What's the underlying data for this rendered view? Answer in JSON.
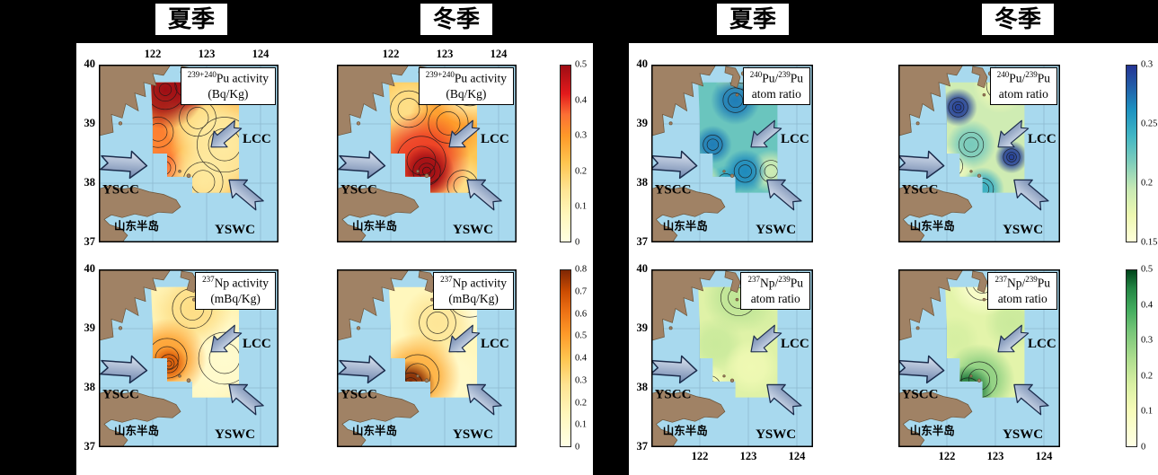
{
  "titles": {
    "col1": "夏季",
    "col2": "冬季",
    "col3": "夏季",
    "col4": "冬季"
  },
  "axes": {
    "x_ticks": [
      "122",
      "123",
      "124"
    ],
    "y_ticks": [
      "40",
      "39",
      "38",
      "37"
    ]
  },
  "map_labels": {
    "yscc": "YSCC",
    "lcc": "LCC",
    "yswc": "YSWC",
    "peninsula": "山东半岛"
  },
  "colors": {
    "background": "#000000",
    "panel": "#ffffff",
    "sea": "#a8d9ee",
    "land": "#a08265",
    "land_edge": "#6b5134",
    "grid": "#7fa8bf",
    "arrow_light": "#dde6f2",
    "arrow_dark": "#6f86ad",
    "arrow_edge": "#1c2c4c"
  },
  "colormaps": {
    "pu_activity": [
      [
        0,
        "#ffffe0"
      ],
      [
        0.15,
        "#fff7bc"
      ],
      [
        0.3,
        "#fee391"
      ],
      [
        0.45,
        "#fec44f"
      ],
      [
        0.6,
        "#fe9929"
      ],
      [
        0.72,
        "#fd7034"
      ],
      [
        0.84,
        "#e31a1c"
      ],
      [
        1,
        "#9e0d14"
      ]
    ],
    "np_activity": [
      [
        0,
        "#ffffe5"
      ],
      [
        0.18,
        "#fff7bc"
      ],
      [
        0.35,
        "#fee391"
      ],
      [
        0.5,
        "#fec44f"
      ],
      [
        0.64,
        "#fe9929"
      ],
      [
        0.77,
        "#ec7014"
      ],
      [
        0.88,
        "#cc4c02"
      ],
      [
        1,
        "#7f2704"
      ]
    ],
    "pu_ratio": [
      [
        0,
        "#ffffd9"
      ],
      [
        0.15,
        "#edf8b1"
      ],
      [
        0.3,
        "#c7e9b4"
      ],
      [
        0.45,
        "#7fcdbb"
      ],
      [
        0.6,
        "#41b6c4"
      ],
      [
        0.75,
        "#1d91c0"
      ],
      [
        0.88,
        "#225ea8"
      ],
      [
        1,
        "#253494"
      ]
    ],
    "np_ratio": [
      [
        0,
        "#ffffe5"
      ],
      [
        0.2,
        "#f7fcb9"
      ],
      [
        0.35,
        "#d9f0a3"
      ],
      [
        0.5,
        "#addd8e"
      ],
      [
        0.65,
        "#78c679"
      ],
      [
        0.78,
        "#41ab5d"
      ],
      [
        0.9,
        "#238443"
      ],
      [
        1,
        "#00441b"
      ]
    ]
  },
  "chart_data": {
    "type": "heatmap",
    "description": "Eight contour maps of the Yellow Sea (lon 122-124 E, lat 37-40 N) showing Pu/Np activity and atom ratios in surface sediment for summer and winter seasons, with ocean currents YSCC, LCC, YSWC and the Shandong Peninsula.",
    "colorbars": [
      {
        "colormap": "pu_activity",
        "range": [
          0,
          0.5
        ],
        "ticks": [
          "0.5",
          "0.4",
          "0.3",
          "0.2",
          "0.1",
          "0"
        ]
      },
      {
        "colormap": "np_activity",
        "range": [
          0,
          0.8
        ],
        "ticks": [
          "0.8",
          "0.7",
          "0.6",
          "0.5",
          "0.4",
          "0.3",
          "0.2",
          "0.1",
          "0"
        ]
      },
      {
        "colormap": "pu_ratio",
        "range": [
          0.15,
          0.3
        ],
        "ticks": [
          "0.3",
          "0.25",
          "0.2",
          "0.15"
        ]
      },
      {
        "colormap": "np_ratio",
        "range": [
          0,
          0.5
        ],
        "ticks": [
          "0.5",
          "0.4",
          "0.3",
          "0.2",
          "0.1",
          "0"
        ]
      }
    ],
    "panels": [
      {
        "id": "pu-activity-summer",
        "season": "夏季",
        "variable_sup1": "239+240",
        "variable_mid": "Pu activity",
        "variable_sup2": "",
        "variable_tail": "",
        "units_line": "(Bq/Kg)",
        "colormap": "pu_activity",
        "range": [
          0,
          0.5
        ],
        "base": 0.26,
        "hotspots": [
          {
            "fx": 0.37,
            "fy": 0.14,
            "r": 0.13,
            "v": 0.5
          },
          {
            "fx": 0.5,
            "fy": 0.11,
            "r": 0.09,
            "v": 0.42
          },
          {
            "fx": 0.33,
            "fy": 0.38,
            "r": 0.1,
            "v": 0.34
          },
          {
            "fx": 0.36,
            "fy": 0.58,
            "r": 0.08,
            "v": 0.36
          },
          {
            "fx": 0.55,
            "fy": 0.3,
            "r": 0.12,
            "v": 0.18
          },
          {
            "fx": 0.7,
            "fy": 0.45,
            "r": 0.18,
            "v": 0.12
          },
          {
            "fx": 0.58,
            "fy": 0.66,
            "r": 0.13,
            "v": 0.14
          }
        ]
      },
      {
        "id": "pu-activity-winter",
        "season": "冬季",
        "variable_sup1": "239+240",
        "variable_mid": "Pu activity",
        "variable_sup2": "",
        "variable_tail": "",
        "units_line": "(Bq/Kg)",
        "colormap": "pu_activity",
        "range": [
          0,
          0.5
        ],
        "base": 0.22,
        "hotspots": [
          {
            "fx": 0.5,
            "fy": 0.6,
            "r": 0.09,
            "v": 0.5
          },
          {
            "fx": 0.47,
            "fy": 0.54,
            "r": 0.16,
            "v": 0.4
          },
          {
            "fx": 0.62,
            "fy": 0.33,
            "r": 0.13,
            "v": 0.3
          },
          {
            "fx": 0.4,
            "fy": 0.25,
            "r": 0.12,
            "v": 0.16
          },
          {
            "fx": 0.74,
            "fy": 0.12,
            "r": 0.13,
            "v": 0.1
          },
          {
            "fx": 0.7,
            "fy": 0.68,
            "r": 0.1,
            "v": 0.16
          }
        ]
      },
      {
        "id": "np-activity-summer",
        "season": "夏季",
        "variable_sup1": "237",
        "variable_mid": "Np activity",
        "variable_sup2": "",
        "variable_tail": "",
        "units_line": "(mBq/Kg)",
        "colormap": "np_activity",
        "range": [
          0,
          0.8
        ],
        "base": 0.18,
        "hotspots": [
          {
            "fx": 0.38,
            "fy": 0.5,
            "r": 0.13,
            "v": 0.5
          },
          {
            "fx": 0.39,
            "fy": 0.53,
            "r": 0.06,
            "v": 0.66
          },
          {
            "fx": 0.52,
            "fy": 0.22,
            "r": 0.13,
            "v": 0.3
          },
          {
            "fx": 0.45,
            "fy": 0.12,
            "r": 0.08,
            "v": 0.12
          },
          {
            "fx": 0.7,
            "fy": 0.5,
            "r": 0.17,
            "v": 0.08
          },
          {
            "fx": 0.55,
            "fy": 0.68,
            "r": 0.1,
            "v": 0.12
          }
        ]
      },
      {
        "id": "np-activity-winter",
        "season": "冬季",
        "variable_sup1": "237",
        "variable_mid": "Np activity",
        "variable_sup2": "",
        "variable_tail": "",
        "units_line": "(mBq/Kg)",
        "colormap": "np_activity",
        "range": [
          0,
          0.8
        ],
        "base": 0.14,
        "hotspots": [
          {
            "fx": 0.41,
            "fy": 0.65,
            "r": 0.08,
            "v": 0.8
          },
          {
            "fx": 0.45,
            "fy": 0.6,
            "r": 0.14,
            "v": 0.46
          },
          {
            "fx": 0.56,
            "fy": 0.3,
            "r": 0.12,
            "v": 0.26
          },
          {
            "fx": 0.74,
            "fy": 0.14,
            "r": 0.15,
            "v": 0.05
          },
          {
            "fx": 0.66,
            "fy": 0.6,
            "r": 0.1,
            "v": 0.1
          }
        ]
      },
      {
        "id": "pu-ratio-summer",
        "season": "夏季",
        "variable_sup1": "240",
        "variable_mid": "Pu/",
        "variable_sup2": "239",
        "variable_tail": "Pu",
        "units_line": "atom ratio",
        "colormap": "pu_ratio",
        "range": [
          0.15,
          0.3
        ],
        "base": 0.225,
        "hotspots": [
          {
            "fx": 0.52,
            "fy": 0.2,
            "r": 0.09,
            "v": 0.27
          },
          {
            "fx": 0.38,
            "fy": 0.45,
            "r": 0.07,
            "v": 0.27
          },
          {
            "fx": 0.58,
            "fy": 0.6,
            "r": 0.08,
            "v": 0.265
          },
          {
            "fx": 0.46,
            "fy": 0.66,
            "r": 0.06,
            "v": 0.25
          },
          {
            "fx": 0.56,
            "fy": 0.06,
            "r": 0.1,
            "v": 0.19
          },
          {
            "fx": 0.32,
            "fy": 0.68,
            "r": 0.08,
            "v": 0.18
          },
          {
            "fx": 0.74,
            "fy": 0.6,
            "r": 0.08,
            "v": 0.19
          }
        ]
      },
      {
        "id": "pu-ratio-winter",
        "season": "冬季",
        "variable_sup1": "240",
        "variable_mid": "Pu/",
        "variable_sup2": "239",
        "variable_tail": "Pu",
        "units_line": "atom ratio",
        "colormap": "pu_ratio",
        "range": [
          0.15,
          0.3
        ],
        "base": 0.19,
        "hotspots": [
          {
            "fx": 0.37,
            "fy": 0.24,
            "r": 0.07,
            "v": 0.295
          },
          {
            "fx": 0.7,
            "fy": 0.52,
            "r": 0.06,
            "v": 0.295
          },
          {
            "fx": 0.52,
            "fy": 0.7,
            "r": 0.08,
            "v": 0.245
          },
          {
            "fx": 0.45,
            "fy": 0.45,
            "r": 0.09,
            "v": 0.22
          },
          {
            "fx": 0.33,
            "fy": 0.57,
            "r": 0.08,
            "v": 0.165
          },
          {
            "fx": 0.63,
            "fy": 0.12,
            "r": 0.1,
            "v": 0.17
          }
        ]
      },
      {
        "id": "np-ratio-summer",
        "season": "夏季",
        "variable_sup1": "237",
        "variable_mid": "Np/",
        "variable_sup2": "239",
        "variable_tail": "Pu",
        "units_line": "atom ratio",
        "colormap": "np_ratio",
        "range": [
          0,
          0.5
        ],
        "base": 0.16,
        "hotspots": [
          {
            "fx": 0.54,
            "fy": 0.16,
            "r": 0.13,
            "v": 0.22
          },
          {
            "fx": 0.4,
            "fy": 0.42,
            "r": 0.1,
            "v": 0.2
          },
          {
            "fx": 0.68,
            "fy": 0.25,
            "r": 0.08,
            "v": 0.18
          },
          {
            "fx": 0.62,
            "fy": 0.55,
            "r": 0.1,
            "v": 0.12
          },
          {
            "fx": 0.36,
            "fy": 0.66,
            "r": 0.08,
            "v": 0.1
          }
        ]
      },
      {
        "id": "np-ratio-winter",
        "season": "冬季",
        "variable_sup1": "237",
        "variable_mid": "Np/",
        "variable_sup2": "239",
        "variable_tail": "Pu",
        "units_line": "atom ratio",
        "colormap": "np_ratio",
        "range": [
          0,
          0.5
        ],
        "base": 0.15,
        "hotspots": [
          {
            "fx": 0.43,
            "fy": 0.68,
            "r": 0.09,
            "v": 0.46
          },
          {
            "fx": 0.5,
            "fy": 0.62,
            "r": 0.13,
            "v": 0.3
          },
          {
            "fx": 0.7,
            "fy": 0.3,
            "r": 0.1,
            "v": 0.2
          },
          {
            "fx": 0.35,
            "fy": 0.4,
            "r": 0.09,
            "v": 0.18
          },
          {
            "fx": 0.52,
            "fy": 0.08,
            "r": 0.12,
            "v": 0.06
          }
        ]
      }
    ]
  }
}
